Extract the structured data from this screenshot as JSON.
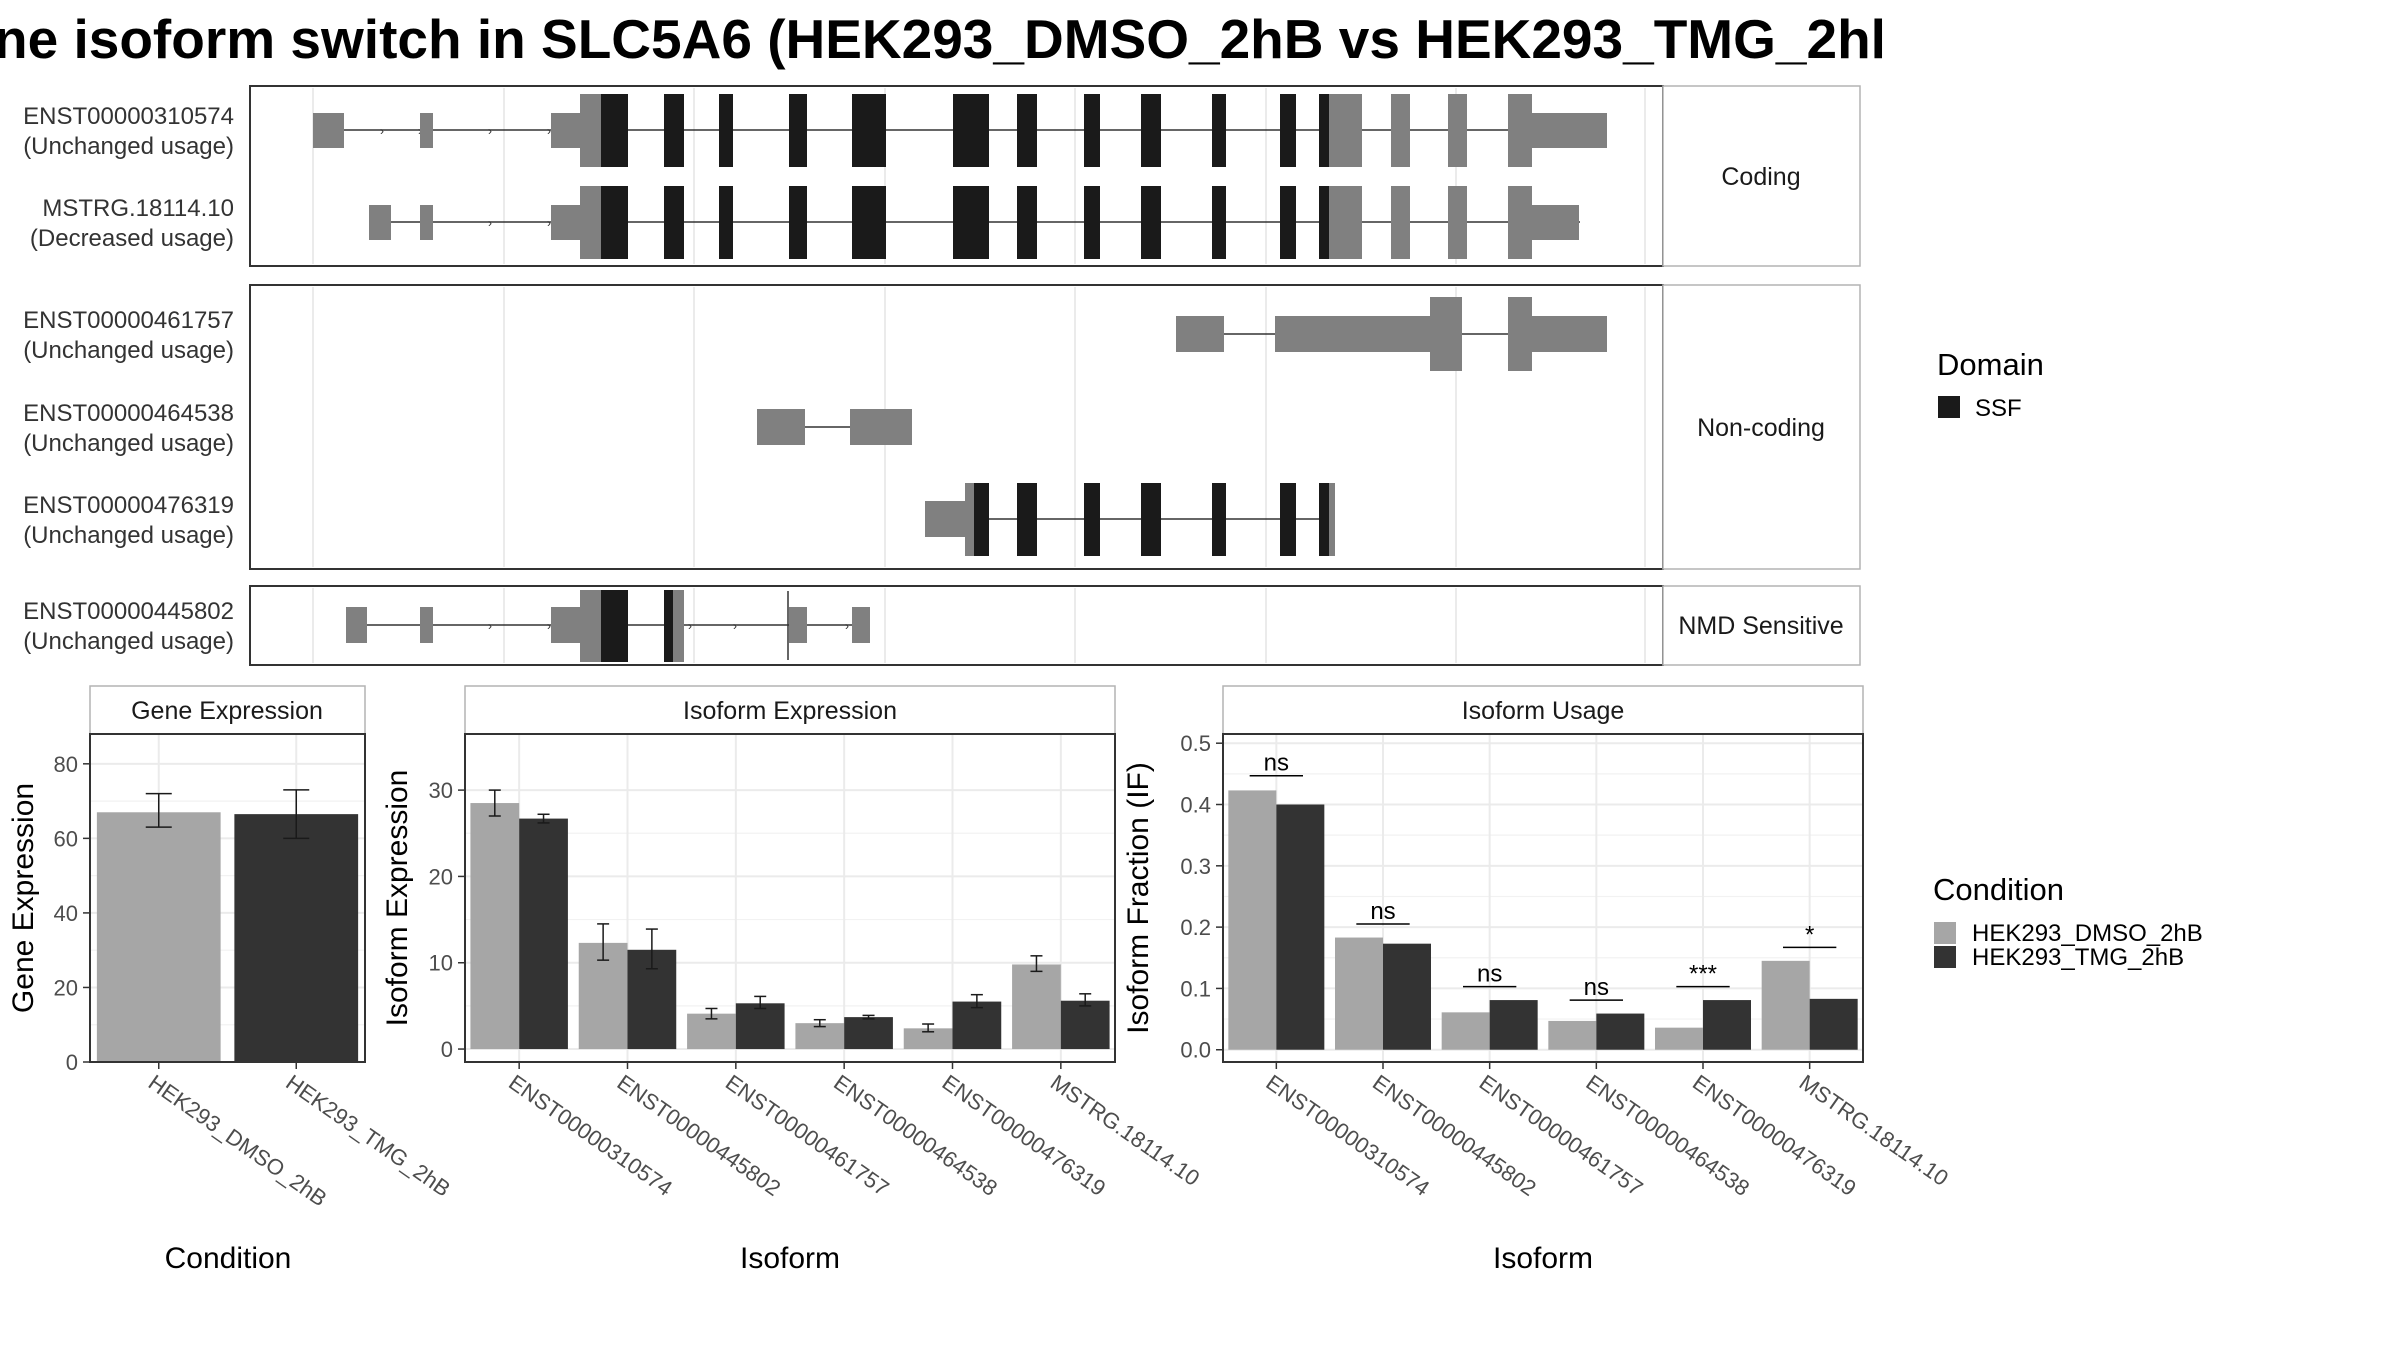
{
  "title": "ne isoform switch in SLC5A6 (HEK293_DMSO_2hB vs HEK293_TMG_2hl",
  "structure": {
    "groups": [
      {
        "label": "Coding",
        "tracks": [
          {
            "id": "ENST00000310574",
            "usage": "(Unchanged usage)",
            "row": 0
          },
          {
            "id": "MSTRG.18114.10",
            "usage": "(Decreased usage)",
            "row": 1
          }
        ]
      },
      {
        "label": "Non-coding",
        "tracks": [
          {
            "id": "ENST00000461757",
            "usage": "(Unchanged usage)",
            "row": 0
          },
          {
            "id": "ENST00000464538",
            "usage": "(Unchanged usage)",
            "row": 1
          },
          {
            "id": "ENST00000476319",
            "usage": "(Unchanged usage)",
            "row": 2
          }
        ]
      },
      {
        "label": "NMD Sensitive",
        "tracks": [
          {
            "id": "ENST00000445802",
            "usage": "(Unchanged usage)",
            "row": 0
          }
        ]
      }
    ]
  },
  "legend_domain": {
    "title": "Domain",
    "items": [
      {
        "label": "SSF",
        "color": "#1a1a1a"
      }
    ]
  },
  "legend_condition": {
    "title": "Condition",
    "items": [
      {
        "label": "HEK293_DMSO_2hB",
        "color": "#a6a6a6"
      },
      {
        "label": "HEK293_TMG_2hB",
        "color": "#333333"
      }
    ]
  },
  "chart_data": [
    {
      "type": "bar",
      "title": "Gene Expression",
      "xlabel": "Condition",
      "ylabel": "Gene Expression",
      "categories": [
        "HEK293_DMSO_2hB",
        "HEK293_TMG_2hB"
      ],
      "values": [
        67,
        66.5
      ],
      "error_low": [
        63,
        60
      ],
      "error_high": [
        72,
        73
      ],
      "ylim": [
        0,
        88
      ],
      "yticks": [
        0,
        20,
        40,
        60,
        80
      ]
    },
    {
      "type": "bar",
      "title": "Isoform Expression",
      "xlabel": "Isoform",
      "ylabel": "Isoform Expression",
      "categories": [
        "ENST00000310574",
        "ENST00000445802",
        "ENST00000461757",
        "ENST00000464538",
        "ENST00000476319",
        "MSTRG.18114.10"
      ],
      "series": [
        {
          "values": [
            28.5,
            12.3,
            4.1,
            3.0,
            2.4,
            9.8
          ],
          "error_low": [
            27.0,
            10.3,
            3.5,
            2.6,
            2.0,
            9.0
          ],
          "error_high": [
            30.0,
            14.5,
            4.7,
            3.4,
            2.9,
            10.8
          ]
        },
        {
          "values": [
            26.7,
            11.5,
            5.3,
            3.7,
            5.5,
            5.6
          ],
          "error_low": [
            26.2,
            9.3,
            4.7,
            3.5,
            4.8,
            5.0
          ],
          "error_high": [
            27.2,
            13.9,
            6.1,
            3.9,
            6.3,
            6.4
          ]
        }
      ],
      "ylim": [
        -1.5,
        36.5
      ],
      "yticks": [
        0,
        10,
        20,
        30
      ]
    },
    {
      "type": "bar",
      "title": "Isoform Usage",
      "xlabel": "Isoform",
      "ylabel": "Isoform Fraction (IF)",
      "categories": [
        "ENST00000310574",
        "ENST00000445802",
        "ENST00000461757",
        "ENST00000464538",
        "ENST00000476319",
        "MSTRG.18114.10"
      ],
      "series": [
        {
          "values": [
            0.423,
            0.183,
            0.061,
            0.047,
            0.036,
            0.145
          ]
        },
        {
          "values": [
            0.4,
            0.173,
            0.081,
            0.059,
            0.081,
            0.083
          ]
        }
      ],
      "significance": [
        "ns",
        "ns",
        "ns",
        "ns",
        "***",
        "*"
      ],
      "sig_level": [
        0.447,
        0.205,
        0.103,
        0.081,
        0.103,
        0.167
      ],
      "ylim": [
        -0.02,
        0.515
      ],
      "yticks": [
        0.0,
        0.1,
        0.2,
        0.3,
        0.4,
        0.5
      ],
      "ytick_labels": [
        "0.0",
        "0.1",
        "0.2",
        "0.3",
        "0.4",
        "0.5"
      ]
    }
  ]
}
